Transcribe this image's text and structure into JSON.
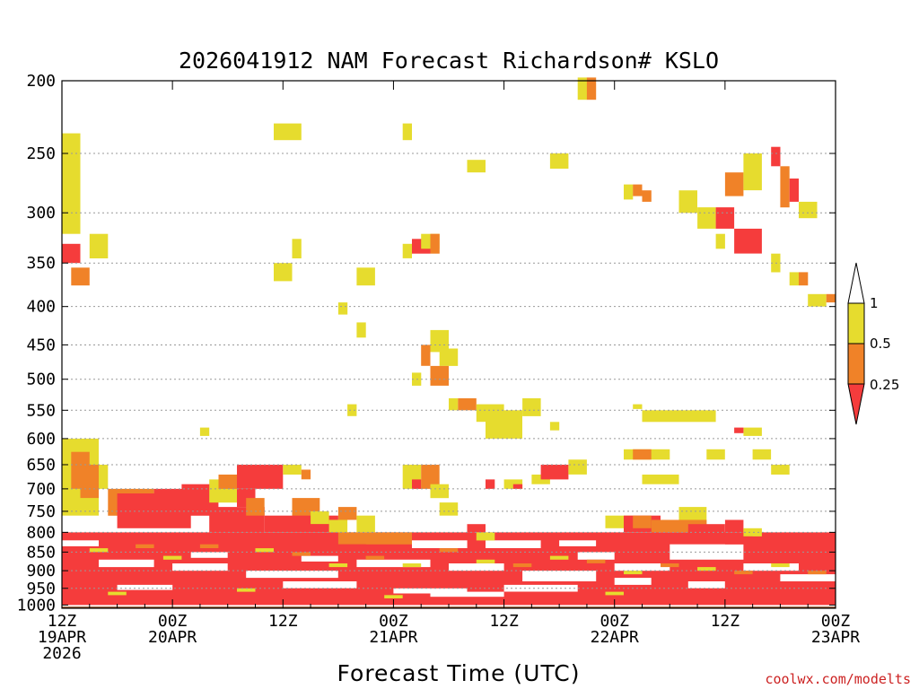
{
  "chart_data": {
    "type": "heatmap",
    "title": "2026041912 NAM Forecast Richardson# KSLO",
    "xlabel": "Forecast Time (UTC)",
    "ylabel": "",
    "credit": "coolwx.com/modelts",
    "y_ticks": [
      200,
      250,
      300,
      350,
      400,
      450,
      500,
      550,
      600,
      650,
      700,
      750,
      800,
      850,
      900,
      950,
      1000
    ],
    "y_scale": "log",
    "ylim": [
      200,
      1010
    ],
    "xlim_hours": [
      0,
      84
    ],
    "x_ticks": [
      {
        "hour": 0,
        "line1": "12Z",
        "line2": "19APR",
        "line3": "2026"
      },
      {
        "hour": 12,
        "line1": "00Z",
        "line2": "20APR",
        "line3": ""
      },
      {
        "hour": 24,
        "line1": "12Z",
        "line2": "",
        "line3": ""
      },
      {
        "hour": 36,
        "line1": "00Z",
        "line2": "21APR",
        "line3": ""
      },
      {
        "hour": 48,
        "line1": "12Z",
        "line2": "",
        "line3": ""
      },
      {
        "hour": 60,
        "line1": "00Z",
        "line2": "22APR",
        "line3": ""
      },
      {
        "hour": 72,
        "line1": "12Z",
        "line2": "",
        "line3": ""
      },
      {
        "hour": 84,
        "line1": "00Z",
        "line2": "23APR",
        "line3": ""
      }
    ],
    "legend": {
      "labels": [
        "1",
        "0.5",
        "0.25"
      ],
      "bins": [
        {
          "name": "0.5-1",
          "color": "#e6dc2e"
        },
        {
          "name": "0.25-0.5",
          "color": "#f08228"
        },
        {
          "name": "<0.25",
          "color": "#f53c3c"
        }
      ]
    },
    "colors": {
      "y": "#e6dc2e",
      "o": "#f08228",
      "r": "#f53c3c",
      "ground": "#8b4a22"
    },
    "ground_level_hpa": 1005,
    "cells": [
      [
        0,
        235,
        2,
        320,
        "y"
      ],
      [
        0,
        330,
        2,
        350,
        "r"
      ],
      [
        1,
        355,
        3,
        375,
        "o"
      ],
      [
        3,
        320,
        5,
        345,
        "y"
      ],
      [
        23,
        228,
        26,
        240,
        "y"
      ],
      [
        37,
        228,
        38,
        240,
        "y"
      ],
      [
        56,
        198,
        57,
        212,
        "y"
      ],
      [
        57,
        198,
        58,
        212,
        "o"
      ],
      [
        44,
        255,
        46,
        265,
        "y"
      ],
      [
        53,
        250,
        55,
        262,
        "y"
      ],
      [
        61,
        275,
        62,
        288,
        "y"
      ],
      [
        62,
        275,
        63,
        285,
        "o"
      ],
      [
        63,
        280,
        64,
        290,
        "o"
      ],
      [
        67,
        280,
        69,
        300,
        "y"
      ],
      [
        69,
        295,
        71,
        315,
        "y"
      ],
      [
        71,
        295,
        73,
        315,
        "r"
      ],
      [
        72,
        265,
        74,
        285,
        "o"
      ],
      [
        74,
        250,
        76,
        280,
        "y"
      ],
      [
        77,
        245,
        78,
        260,
        "r"
      ],
      [
        78,
        260,
        79,
        295,
        "o"
      ],
      [
        79,
        270,
        80,
        290,
        "r"
      ],
      [
        80,
        290,
        82,
        305,
        "y"
      ],
      [
        38,
        325,
        40,
        340,
        "r"
      ],
      [
        39,
        320,
        41,
        335,
        "y"
      ],
      [
        40,
        320,
        41,
        340,
        "o"
      ],
      [
        37,
        330,
        38,
        345,
        "y"
      ],
      [
        25,
        325,
        26,
        345,
        "y"
      ],
      [
        23,
        350,
        25,
        370,
        "y"
      ],
      [
        32,
        355,
        34,
        375,
        "y"
      ],
      [
        30,
        395,
        31,
        410,
        "y"
      ],
      [
        73,
        315,
        76,
        340,
        "r"
      ],
      [
        71,
        320,
        72,
        335,
        "y"
      ],
      [
        77,
        340,
        78,
        360,
        "y"
      ],
      [
        79,
        360,
        80,
        375,
        "y"
      ],
      [
        80,
        360,
        81,
        375,
        "o"
      ],
      [
        81,
        385,
        83,
        400,
        "y"
      ],
      [
        83,
        385,
        84,
        395,
        "o"
      ],
      [
        32,
        420,
        33,
        440,
        "y"
      ],
      [
        39,
        450,
        40,
        480,
        "o"
      ],
      [
        40,
        430,
        42,
        460,
        "y"
      ],
      [
        41,
        455,
        43,
        480,
        "y"
      ],
      [
        40,
        480,
        42,
        510,
        "o"
      ],
      [
        38,
        490,
        39,
        510,
        "y"
      ],
      [
        42,
        530,
        43,
        550,
        "y"
      ],
      [
        43,
        530,
        45,
        550,
        "o"
      ],
      [
        45,
        540,
        48,
        570,
        "y"
      ],
      [
        46,
        550,
        50,
        600,
        "y"
      ],
      [
        50,
        530,
        52,
        560,
        "y"
      ],
      [
        31,
        540,
        32,
        560,
        "y"
      ],
      [
        53,
        570,
        54,
        585,
        "y"
      ],
      [
        63,
        550,
        71,
        570,
        "y"
      ],
      [
        62,
        540,
        63,
        548,
        "y"
      ],
      [
        15,
        580,
        16,
        595,
        "y"
      ],
      [
        0,
        600,
        4,
        760,
        "y"
      ],
      [
        1,
        625,
        3,
        700,
        "o"
      ],
      [
        2,
        650,
        4,
        720,
        "o"
      ],
      [
        4,
        650,
        5,
        700,
        "y"
      ],
      [
        5,
        700,
        10,
        760,
        "o"
      ],
      [
        6,
        710,
        14,
        790,
        "r"
      ],
      [
        10,
        700,
        17,
        760,
        "r"
      ],
      [
        13,
        690,
        18,
        720,
        "r"
      ],
      [
        16,
        680,
        19,
        730,
        "y"
      ],
      [
        17,
        670,
        19,
        700,
        "o"
      ],
      [
        19,
        650,
        24,
        700,
        "r"
      ],
      [
        19,
        700,
        21,
        740,
        "r"
      ],
      [
        16,
        740,
        22,
        800,
        "r"
      ],
      [
        20,
        720,
        22,
        760,
        "o"
      ],
      [
        24,
        650,
        26,
        670,
        "y"
      ],
      [
        26,
        660,
        27,
        680,
        "o"
      ],
      [
        25,
        720,
        28,
        770,
        "o"
      ],
      [
        22,
        760,
        30,
        800,
        "r"
      ],
      [
        27,
        750,
        29,
        780,
        "y"
      ],
      [
        29,
        770,
        31,
        800,
        "y"
      ],
      [
        30,
        740,
        32,
        770,
        "o"
      ],
      [
        32,
        760,
        34,
        800,
        "y"
      ],
      [
        30,
        800,
        38,
        830,
        "o"
      ],
      [
        27,
        830,
        33,
        850,
        "r"
      ],
      [
        37,
        650,
        39,
        700,
        "y"
      ],
      [
        38,
        680,
        39,
        700,
        "r"
      ],
      [
        39,
        650,
        41,
        700,
        "o"
      ],
      [
        40,
        690,
        42,
        720,
        "y"
      ],
      [
        41,
        730,
        43,
        760,
        "y"
      ],
      [
        44,
        780,
        46,
        800,
        "r"
      ],
      [
        45,
        800,
        47,
        820,
        "y"
      ],
      [
        46,
        680,
        47,
        700,
        "r"
      ],
      [
        48,
        680,
        50,
        700,
        "y"
      ],
      [
        49,
        690,
        50,
        700,
        "r"
      ],
      [
        51,
        670,
        53,
        690,
        "y"
      ],
      [
        52,
        650,
        55,
        680,
        "r"
      ],
      [
        55,
        640,
        57,
        670,
        "y"
      ],
      [
        59,
        760,
        62,
        790,
        "y"
      ],
      [
        61,
        760,
        65,
        800,
        "r"
      ],
      [
        62,
        760,
        64,
        790,
        "o"
      ],
      [
        64,
        770,
        70,
        800,
        "o"
      ],
      [
        68,
        780,
        72,
        810,
        "r"
      ],
      [
        67,
        740,
        70,
        770,
        "y"
      ],
      [
        72,
        770,
        74,
        800,
        "r"
      ],
      [
        74,
        790,
        76,
        810,
        "y"
      ],
      [
        72,
        810,
        75,
        830,
        "r"
      ],
      [
        61,
        620,
        66,
        640,
        "y"
      ],
      [
        62,
        620,
        64,
        640,
        "o"
      ],
      [
        63,
        670,
        67,
        690,
        "y"
      ],
      [
        70,
        620,
        72,
        640,
        "y"
      ],
      [
        74,
        580,
        76,
        595,
        "y"
      ],
      [
        73,
        580,
        74,
        590,
        "r"
      ],
      [
        75,
        620,
        77,
        640,
        "y"
      ],
      [
        77,
        650,
        79,
        670,
        "y"
      ],
      [
        0,
        800,
        84,
        1000,
        "r"
      ]
    ],
    "white_gaps": [
      [
        4,
        870,
        10,
        890
      ],
      [
        12,
        880,
        18,
        900
      ],
      [
        20,
        900,
        30,
        920
      ],
      [
        32,
        870,
        40,
        890
      ],
      [
        42,
        880,
        48,
        900
      ],
      [
        46,
        820,
        52,
        840
      ],
      [
        50,
        900,
        58,
        930
      ],
      [
        56,
        850,
        60,
        870
      ],
      [
        60,
        880,
        66,
        900
      ],
      [
        66,
        830,
        74,
        870
      ],
      [
        74,
        880,
        80,
        900
      ],
      [
        6,
        940,
        12,
        955
      ],
      [
        24,
        930,
        32,
        950
      ],
      [
        36,
        950,
        44,
        965
      ],
      [
        48,
        940,
        56,
        960
      ],
      [
        60,
        920,
        64,
        940
      ],
      [
        68,
        930,
        72,
        950
      ],
      [
        78,
        910,
        84,
        930
      ],
      [
        14,
        850,
        18,
        865
      ],
      [
        26,
        860,
        30,
        875
      ],
      [
        38,
        820,
        44,
        840
      ],
      [
        54,
        820,
        58,
        835
      ],
      [
        0,
        820,
        4,
        835
      ],
      [
        40,
        960,
        48,
        975
      ]
    ],
    "speckles": [
      [
        3,
        840,
        5,
        850,
        "y"
      ],
      [
        8,
        830,
        10,
        840,
        "o"
      ],
      [
        11,
        860,
        13,
        870,
        "y"
      ],
      [
        15,
        830,
        17,
        840,
        "o"
      ],
      [
        21,
        840,
        23,
        850,
        "y"
      ],
      [
        25,
        850,
        27,
        860,
        "o"
      ],
      [
        29,
        880,
        31,
        890,
        "y"
      ],
      [
        33,
        860,
        35,
        870,
        "o"
      ],
      [
        37,
        880,
        39,
        890,
        "y"
      ],
      [
        41,
        840,
        43,
        850,
        "o"
      ],
      [
        45,
        870,
        47,
        880,
        "y"
      ],
      [
        49,
        880,
        51,
        890,
        "o"
      ],
      [
        53,
        860,
        55,
        870,
        "y"
      ],
      [
        57,
        870,
        59,
        880,
        "o"
      ],
      [
        61,
        900,
        63,
        910,
        "y"
      ],
      [
        65,
        880,
        67,
        890,
        "o"
      ],
      [
        69,
        890,
        71,
        900,
        "y"
      ],
      [
        73,
        900,
        75,
        910,
        "o"
      ],
      [
        77,
        880,
        79,
        890,
        "y"
      ],
      [
        81,
        900,
        83,
        910,
        "o"
      ],
      [
        5,
        960,
        7,
        970,
        "y"
      ],
      [
        19,
        950,
        21,
        960,
        "y"
      ],
      [
        35,
        970,
        37,
        980,
        "y"
      ],
      [
        59,
        960,
        61,
        970,
        "y"
      ]
    ]
  }
}
